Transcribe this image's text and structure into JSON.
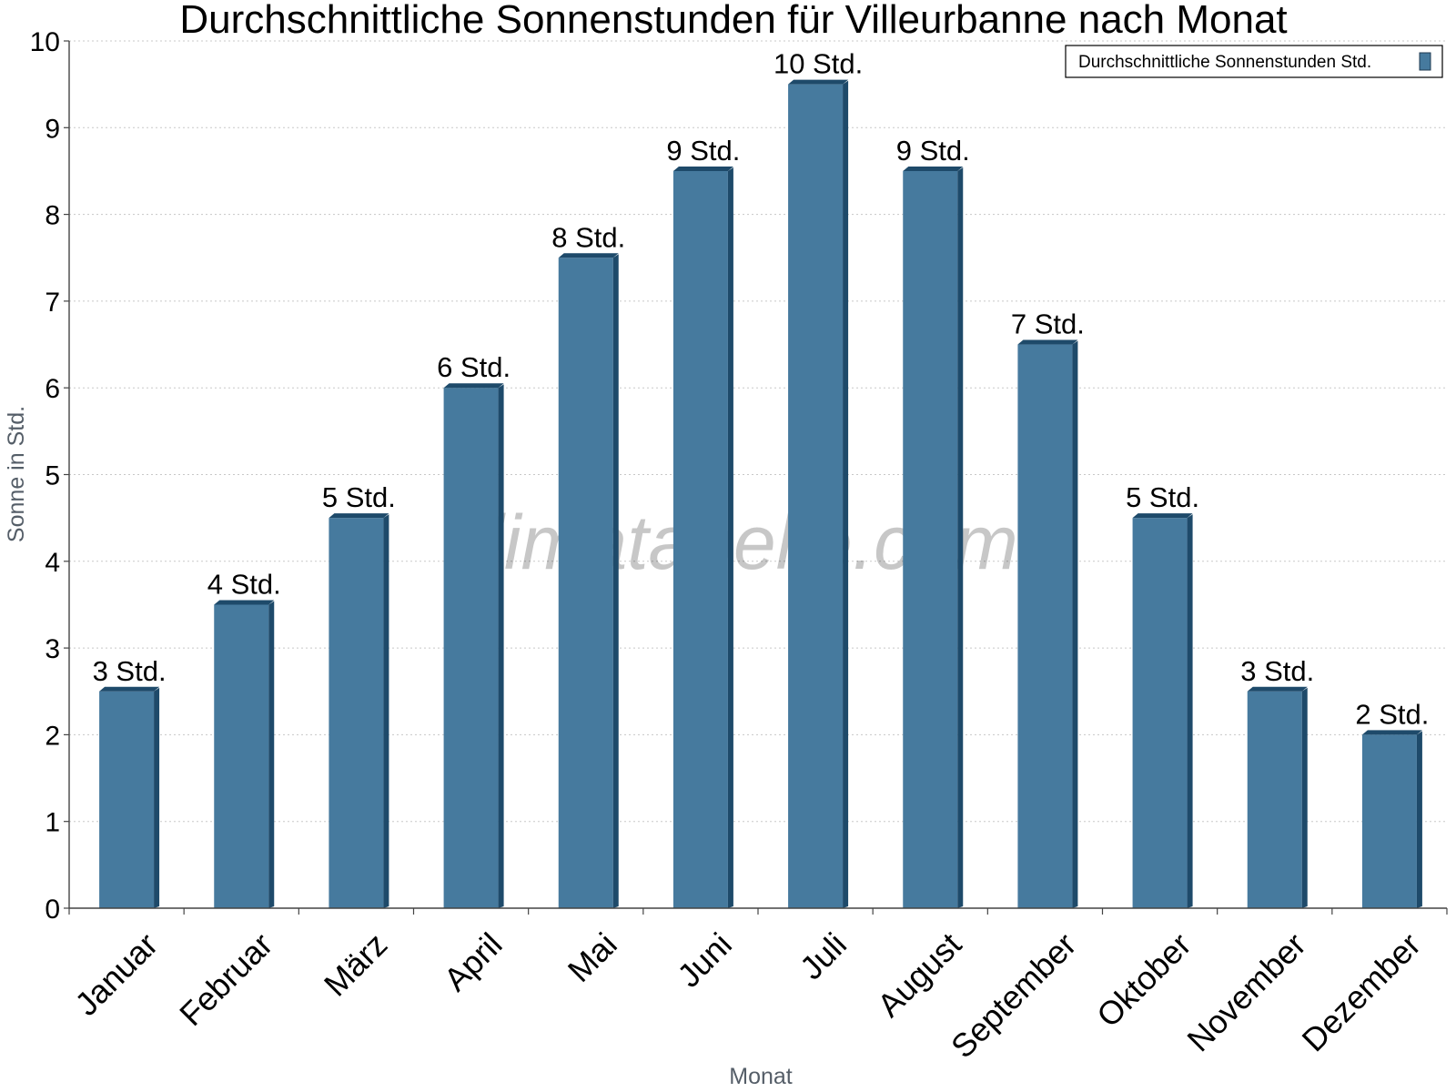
{
  "chart_data": {
    "type": "bar",
    "title": "Durchschnittliche Sonnenstunden für Villeurbanne nach Monat",
    "xlabel": "Monat",
    "ylabel": "Sonne in Std.",
    "ylim": [
      0,
      10
    ],
    "yticks": [
      "0",
      "1",
      "2",
      "3",
      "4",
      "5",
      "6",
      "7",
      "8",
      "9",
      "10"
    ],
    "grid": true,
    "legend_position": "top-right",
    "categories": [
      "Januar",
      "Februar",
      "März",
      "April",
      "Mai",
      "Juni",
      "Juli",
      "August",
      "September",
      "Oktober",
      "November",
      "Dezember"
    ],
    "series": [
      {
        "name": "Durchschnittliche Sonnenstunden Std.",
        "values": [
          2.5,
          3.5,
          4.5,
          6,
          7.5,
          8.5,
          9.5,
          8.5,
          6.5,
          4.5,
          2.5,
          2
        ],
        "labels": [
          "3 Std.",
          "4 Std.",
          "5 Std.",
          "6 Std.",
          "8 Std.",
          "9 Std.",
          "10 Std.",
          "9 Std.",
          "7 Std.",
          "5 Std.",
          "3 Std.",
          "2 Std."
        ],
        "color": "#467a9e",
        "side_color": "#1e4a6a"
      }
    ],
    "watermark": "klimatabelle.com"
  }
}
